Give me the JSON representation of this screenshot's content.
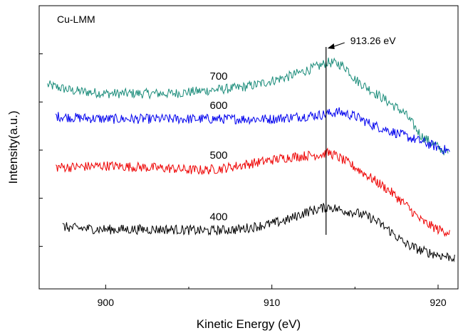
{
  "chart_data": {
    "type": "line",
    "title": "",
    "panel_label": "Cu-LMM",
    "xlabel": "Kinetic Energy (eV)",
    "ylabel": "Intensity(a.u.)",
    "xlim": [
      896,
      921.2
    ],
    "ylim": [
      0,
      1
    ],
    "x_ticks": [
      900,
      910,
      920
    ],
    "y_ticks_labeled": false,
    "grid": false,
    "legend": "none",
    "annotation": {
      "text": "913.26 eV",
      "x": 913.26
    },
    "series": [
      {
        "name": "700",
        "color": "#1a8c7a",
        "points": [
          [
            896.5,
            0.72
          ],
          [
            898,
            0.7
          ],
          [
            900,
            0.69
          ],
          [
            902,
            0.69
          ],
          [
            904,
            0.69
          ],
          [
            906,
            0.7
          ],
          [
            907,
            0.705
          ],
          [
            908,
            0.71
          ],
          [
            909,
            0.72
          ],
          [
            910,
            0.735
          ],
          [
            911,
            0.75
          ],
          [
            912,
            0.77
          ],
          [
            913,
            0.79
          ],
          [
            913.3,
            0.8
          ],
          [
            914,
            0.795
          ],
          [
            914.5,
            0.78
          ],
          [
            915,
            0.74
          ],
          [
            916,
            0.7
          ],
          [
            917,
            0.66
          ],
          [
            918,
            0.62
          ],
          [
            919,
            0.54
          ],
          [
            920,
            0.5
          ],
          [
            920.6,
            0.48
          ]
        ]
      },
      {
        "name": "600",
        "color": "#0000ee",
        "points": [
          [
            897,
            0.61
          ],
          [
            898,
            0.605
          ],
          [
            900,
            0.6
          ],
          [
            902,
            0.6
          ],
          [
            904,
            0.6
          ],
          [
            906,
            0.6
          ],
          [
            908,
            0.6
          ],
          [
            910,
            0.6
          ],
          [
            911,
            0.605
          ],
          [
            912,
            0.61
          ],
          [
            913,
            0.615
          ],
          [
            914,
            0.625
          ],
          [
            915,
            0.61
          ],
          [
            916,
            0.58
          ],
          [
            917,
            0.56
          ],
          [
            918,
            0.54
          ],
          [
            919,
            0.52
          ],
          [
            920,
            0.5
          ],
          [
            920.7,
            0.485
          ]
        ]
      },
      {
        "name": "500",
        "color": "#ee0000",
        "points": [
          [
            897,
            0.43
          ],
          [
            898,
            0.43
          ],
          [
            900,
            0.435
          ],
          [
            902,
            0.43
          ],
          [
            904,
            0.425
          ],
          [
            905,
            0.42
          ],
          [
            906,
            0.42
          ],
          [
            907,
            0.425
          ],
          [
            908,
            0.435
          ],
          [
            909,
            0.445
          ],
          [
            910,
            0.455
          ],
          [
            911,
            0.465
          ],
          [
            912,
            0.47
          ],
          [
            913,
            0.475
          ],
          [
            913.5,
            0.48
          ],
          [
            914,
            0.465
          ],
          [
            915,
            0.43
          ],
          [
            916,
            0.39
          ],
          [
            917,
            0.35
          ],
          [
            918,
            0.3
          ],
          [
            919,
            0.24
          ],
          [
            920,
            0.21
          ],
          [
            920.7,
            0.2
          ]
        ]
      },
      {
        "name": "400",
        "color": "#000000",
        "points": [
          [
            897.4,
            0.22
          ],
          [
            898,
            0.215
          ],
          [
            900,
            0.21
          ],
          [
            902,
            0.21
          ],
          [
            904,
            0.21
          ],
          [
            906,
            0.205
          ],
          [
            908,
            0.21
          ],
          [
            909,
            0.22
          ],
          [
            910,
            0.23
          ],
          [
            911,
            0.245
          ],
          [
            912,
            0.27
          ],
          [
            913,
            0.285
          ],
          [
            913.5,
            0.29
          ],
          [
            914,
            0.28
          ],
          [
            915,
            0.27
          ],
          [
            916,
            0.25
          ],
          [
            917,
            0.21
          ],
          [
            918,
            0.16
          ],
          [
            919,
            0.135
          ],
          [
            920,
            0.12
          ],
          [
            921,
            0.11
          ]
        ]
      }
    ]
  }
}
